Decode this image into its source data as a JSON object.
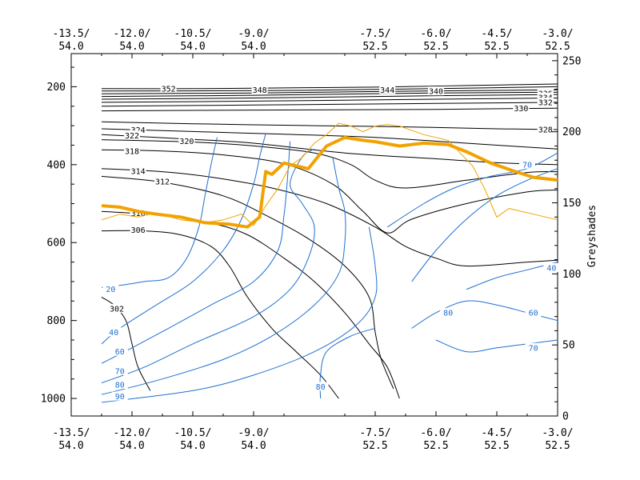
{
  "chart_data": {
    "type": "line",
    "title": "",
    "xlabel": "",
    "ylabel": "",
    "y2label": "Greyshades",
    "x_ticks": [
      {
        "lon": "-13.5/",
        "lat": "54.0"
      },
      {
        "lon": "-12.0/",
        "lat": "54.0"
      },
      {
        "lon": "-10.5/",
        "lat": "54.0"
      },
      {
        "lon": "-9.0/",
        "lat": "54.0"
      },
      {
        "lon": "-7.5/",
        "lat": "52.5"
      },
      {
        "lon": "-6.0/",
        "lat": "52.5"
      },
      {
        "lon": "-4.5/",
        "lat": "52.5"
      },
      {
        "lon": "-3.0/",
        "lat": "52.5"
      }
    ],
    "x_tick_index": [
      0,
      1,
      2,
      3,
      5,
      6,
      7,
      8
    ],
    "x_range": [
      0,
      8
    ],
    "y_left_range": [
      1045,
      115
    ],
    "y_left_ticks": [
      200,
      400,
      600,
      800,
      1000
    ],
    "y_right_range": [
      0,
      255
    ],
    "y_right_ticks": [
      0,
      50,
      100,
      150,
      200,
      250
    ],
    "theta_contours": [
      {
        "value": "352",
        "labels": [
          [
            1.6,
            205
          ]
        ],
        "points": [
          [
            0.5,
            205
          ],
          [
            2.0,
            205
          ],
          [
            3.5,
            203
          ],
          [
            5.0,
            201
          ],
          [
            6.5,
            197
          ],
          [
            8.0,
            193
          ]
        ]
      },
      {
        "value": "348",
        "labels": [
          [
            3.1,
            208
          ]
        ],
        "points": [
          [
            0.5,
            211
          ],
          [
            3.1,
            210
          ],
          [
            5.0,
            207
          ],
          [
            8.0,
            200
          ]
        ]
      },
      {
        "value": "344",
        "labels": [
          [
            5.2,
            208
          ]
        ],
        "points": [
          [
            0.5,
            218
          ],
          [
            3.0,
            216
          ],
          [
            5.2,
            212
          ],
          [
            8.0,
            208
          ]
        ]
      },
      {
        "value": "340",
        "labels": [
          [
            6.0,
            212
          ]
        ],
        "points": [
          [
            0.5,
            225
          ],
          [
            3.0,
            222
          ],
          [
            6.0,
            216
          ],
          [
            8.0,
            214
          ]
        ]
      },
      {
        "value": "336",
        "labels": [
          [
            7.8,
            218
          ]
        ],
        "points": [
          [
            0.5,
            232
          ],
          [
            3.0,
            229
          ],
          [
            6.0,
            223
          ],
          [
            8.0,
            220
          ]
        ]
      },
      {
        "value": "334",
        "labels": [
          [
            7.8,
            228
          ]
        ],
        "points": [
          [
            0.5,
            240
          ],
          [
            3.0,
            237
          ],
          [
            6.0,
            232
          ],
          [
            8.0,
            229
          ]
        ]
      },
      {
        "value": "332",
        "labels": [
          [
            7.8,
            240
          ]
        ],
        "points": [
          [
            0.5,
            250
          ],
          [
            3.0,
            247
          ],
          [
            6.0,
            243
          ],
          [
            8.0,
            240
          ]
        ]
      },
      {
        "value": "330",
        "labels": [
          [
            7.4,
            256
          ]
        ],
        "points": [
          [
            0.5,
            262
          ],
          [
            3.0,
            260
          ],
          [
            6.0,
            258
          ],
          [
            8.0,
            255
          ]
        ]
      },
      {
        "value": "328",
        "labels": [
          [
            7.8,
            310
          ]
        ],
        "points": [
          [
            0.5,
            290
          ],
          [
            2.0,
            295
          ],
          [
            4.0,
            300
          ],
          [
            5.5,
            303
          ],
          [
            7.0,
            308
          ],
          [
            8.0,
            310
          ]
        ]
      },
      {
        "value": "324",
        "labels": [
          [
            1.1,
            311
          ]
        ],
        "points": [
          [
            0.5,
            308
          ],
          [
            2.0,
            315
          ],
          [
            3.5,
            322
          ],
          [
            5.0,
            330
          ],
          [
            6.5,
            345
          ],
          [
            8.0,
            360
          ]
        ]
      },
      {
        "value": "322",
        "labels": [
          [
            1.0,
            325
          ]
        ],
        "points": [
          [
            0.5,
            323
          ],
          [
            2.0,
            335
          ],
          [
            3.0,
            345
          ],
          [
            4.5,
            370
          ],
          [
            6.0,
            385
          ],
          [
            7.0,
            395
          ],
          [
            8.0,
            400
          ]
        ]
      },
      {
        "value": "320",
        "labels": [
          [
            1.9,
            340
          ]
        ],
        "points": [
          [
            0.5,
            336
          ],
          [
            2.0,
            342
          ],
          [
            3.0,
            352
          ],
          [
            4.0,
            370
          ],
          [
            4.6,
            400
          ],
          [
            5.0,
            440
          ],
          [
            5.5,
            460
          ],
          [
            6.5,
            440
          ],
          [
            7.5,
            420
          ],
          [
            8.0,
            418
          ]
        ]
      },
      {
        "value": "318",
        "labels": [
          [
            1.0,
            365
          ]
        ],
        "points": [
          [
            0.5,
            362
          ],
          [
            1.5,
            365
          ],
          [
            2.5,
            375
          ],
          [
            3.5,
            398
          ],
          [
            4.3,
            450
          ],
          [
            4.8,
            520
          ],
          [
            5.2,
            575
          ],
          [
            5.6,
            540
          ],
          [
            6.5,
            500
          ],
          [
            7.5,
            470
          ],
          [
            8.0,
            465
          ]
        ]
      },
      {
        "value": "314",
        "labels": [
          [
            1.1,
            417
          ]
        ],
        "points": [
          [
            0.5,
            410
          ],
          [
            1.5,
            418
          ],
          [
            2.3,
            432
          ],
          [
            3.3,
            460
          ],
          [
            4.2,
            500
          ],
          [
            5.0,
            560
          ],
          [
            5.5,
            610
          ],
          [
            6.0,
            640
          ],
          [
            6.5,
            660
          ],
          [
            7.5,
            650
          ],
          [
            8.0,
            645
          ]
        ]
      },
      {
        "value": "312",
        "labels": [
          [
            1.5,
            443
          ]
        ],
        "points": [
          [
            0.5,
            430
          ],
          [
            1.5,
            445
          ],
          [
            2.5,
            480
          ],
          [
            3.2,
            530
          ],
          [
            3.9,
            590
          ],
          [
            4.5,
            660
          ],
          [
            4.9,
            740
          ],
          [
            5.0,
            830
          ],
          [
            5.1,
            900
          ],
          [
            5.3,
            975
          ]
        ]
      },
      {
        "value": "310",
        "labels": [
          [
            1.1,
            525
          ]
        ],
        "points": [
          [
            0.5,
            520
          ],
          [
            1.5,
            530
          ],
          [
            2.3,
            550
          ],
          [
            2.9,
            580
          ],
          [
            3.5,
            640
          ],
          [
            4.0,
            700
          ],
          [
            4.5,
            780
          ],
          [
            4.9,
            860
          ],
          [
            5.2,
            920
          ],
          [
            5.4,
            1000
          ]
        ]
      },
      {
        "value": "306",
        "labels": [
          [
            1.1,
            568
          ]
        ],
        "points": [
          [
            0.5,
            570
          ],
          [
            1.2,
            570
          ],
          [
            1.8,
            580
          ],
          [
            2.3,
            610
          ],
          [
            2.6,
            660
          ],
          [
            2.9,
            740
          ],
          [
            3.3,
            820
          ],
          [
            3.7,
            880
          ],
          [
            4.1,
            940
          ],
          [
            4.4,
            1000
          ]
        ]
      },
      {
        "value": "302",
        "labels": [
          [
            0.75,
            770
          ]
        ],
        "points": [
          [
            0.5,
            740
          ],
          [
            0.7,
            760
          ],
          [
            0.9,
            800
          ],
          [
            1.0,
            860
          ],
          [
            1.1,
            920
          ],
          [
            1.3,
            980
          ]
        ]
      }
    ],
    "rh_contours": [
      {
        "value": "20",
        "labels": [
          [
            0.65,
            720
          ]
        ],
        "points": [
          [
            0.5,
            715
          ],
          [
            0.8,
            710
          ],
          [
            1.2,
            700
          ],
          [
            1.6,
            690
          ],
          [
            1.9,
            640
          ],
          [
            2.1,
            560
          ],
          [
            2.2,
            480
          ],
          [
            2.3,
            400
          ],
          [
            2.4,
            330
          ]
        ]
      },
      {
        "value": "40",
        "labels": [
          [
            0.7,
            830
          ]
        ],
        "points": [
          [
            0.5,
            860
          ],
          [
            0.8,
            820
          ],
          [
            1.4,
            760
          ],
          [
            2.0,
            700
          ],
          [
            2.5,
            620
          ],
          [
            2.8,
            540
          ],
          [
            3.0,
            450
          ],
          [
            3.1,
            380
          ],
          [
            3.2,
            320
          ]
        ]
      },
      {
        "value": "60",
        "labels": [
          [
            0.8,
            880
          ]
        ],
        "points": [
          [
            0.5,
            910
          ],
          [
            1.0,
            870
          ],
          [
            1.6,
            820
          ],
          [
            2.3,
            760
          ],
          [
            3.0,
            700
          ],
          [
            3.4,
            620
          ],
          [
            3.5,
            530
          ],
          [
            3.55,
            450
          ],
          [
            3.6,
            340
          ]
        ]
      },
      {
        "value": "70",
        "labels": [
          [
            0.8,
            930
          ]
        ],
        "points": [
          [
            0.5,
            960
          ],
          [
            1.2,
            920
          ],
          [
            2.0,
            860
          ],
          [
            3.0,
            790
          ],
          [
            3.6,
            720
          ],
          [
            3.9,
            640
          ],
          [
            4.0,
            560
          ],
          [
            3.8,
            500
          ],
          [
            3.6,
            450
          ],
          [
            3.8,
            380
          ],
          [
            4.0,
            360
          ]
        ]
      },
      {
        "value": "80",
        "labels": [
          [
            0.8,
            965
          ]
        ],
        "points": [
          [
            0.5,
            990
          ],
          [
            1.5,
            950
          ],
          [
            2.5,
            900
          ],
          [
            3.3,
            840
          ],
          [
            4.0,
            760
          ],
          [
            4.4,
            680
          ],
          [
            4.5,
            600
          ],
          [
            4.5,
            520
          ],
          [
            4.4,
            460
          ],
          [
            4.3,
            380
          ]
        ]
      },
      {
        "value": "90",
        "labels": [
          [
            0.8,
            995
          ]
        ],
        "points": [
          [
            0.5,
            1010
          ],
          [
            2.0,
            980
          ],
          [
            3.0,
            940
          ],
          [
            4.0,
            880
          ],
          [
            4.7,
            810
          ],
          [
            5.0,
            740
          ],
          [
            5.0,
            660
          ],
          [
            4.9,
            560
          ]
        ]
      },
      {
        "value": "80",
        "labels": [
          [
            6.2,
            780
          ]
        ],
        "points": [
          [
            5.2,
            560
          ],
          [
            5.8,
            500
          ],
          [
            6.3,
            460
          ],
          [
            6.9,
            430
          ],
          [
            7.5,
            410
          ],
          [
            8.0,
            370
          ]
        ]
      },
      {
        "value": "70",
        "labels": [
          [
            7.5,
            400
          ]
        ],
        "points": [
          [
            5.6,
            700
          ],
          [
            6.0,
            620
          ],
          [
            6.5,
            540
          ],
          [
            7.0,
            480
          ],
          [
            7.5,
            440
          ],
          [
            8.0,
            410
          ]
        ]
      },
      {
        "value": "40",
        "labels": [
          [
            7.9,
            665
          ]
        ],
        "points": [
          [
            6.5,
            720
          ],
          [
            7.0,
            690
          ],
          [
            7.5,
            670
          ],
          [
            8.0,
            650
          ]
        ]
      },
      {
        "value": "60",
        "labels": [
          [
            7.6,
            780
          ]
        ],
        "points": [
          [
            5.6,
            820
          ],
          [
            6.0,
            780
          ],
          [
            6.5,
            750
          ],
          [
            7.0,
            760
          ],
          [
            7.5,
            780
          ],
          [
            8.0,
            800
          ]
        ]
      },
      {
        "value": "70",
        "labels": [
          [
            7.6,
            870
          ]
        ],
        "points": [
          [
            6.0,
            850
          ],
          [
            6.5,
            880
          ],
          [
            7.0,
            870
          ],
          [
            7.5,
            860
          ],
          [
            8.0,
            850
          ]
        ]
      },
      {
        "value": "80",
        "labels": [
          [
            4.1,
            970
          ]
        ],
        "points": [
          [
            4.1,
            1000
          ],
          [
            4.1,
            940
          ],
          [
            4.2,
            880
          ],
          [
            4.6,
            840
          ],
          [
            5.0,
            820
          ]
        ]
      }
    ],
    "series_right_thick": {
      "x": [
        0.5,
        0.8,
        1.1,
        1.4,
        1.8,
        2.2,
        2.6,
        2.9,
        3.1,
        3.2,
        3.3,
        3.5,
        3.9,
        4.2,
        4.5,
        4.8,
        5.0,
        5.4,
        5.8,
        6.2,
        6.5,
        6.9,
        7.3,
        7.6,
        8.0
      ],
      "y": [
        148,
        147,
        144,
        142,
        140,
        136,
        135,
        133,
        140,
        172,
        170,
        178,
        174,
        190,
        196,
        194,
        193,
        190,
        192,
        191,
        186,
        178,
        172,
        168,
        166
      ]
    },
    "series_right_thin": {
      "x": [
        0.5,
        0.8,
        1.1,
        1.4,
        1.8,
        2.2,
        2.5,
        2.8,
        3.0,
        3.2,
        3.4,
        3.6,
        3.8,
        4.0,
        4.2,
        4.4,
        4.6,
        4.8,
        5.0,
        5.2,
        5.4,
        5.8,
        6.2,
        6.6,
        6.8,
        7.0,
        7.2,
        7.6,
        8.0
      ],
      "y": [
        138,
        142,
        140,
        143,
        138,
        136,
        138,
        142,
        134,
        148,
        160,
        176,
        182,
        192,
        198,
        206,
        204,
        200,
        204,
        205,
        204,
        198,
        194,
        176,
        160,
        140,
        146,
        142,
        138
      ]
    }
  }
}
